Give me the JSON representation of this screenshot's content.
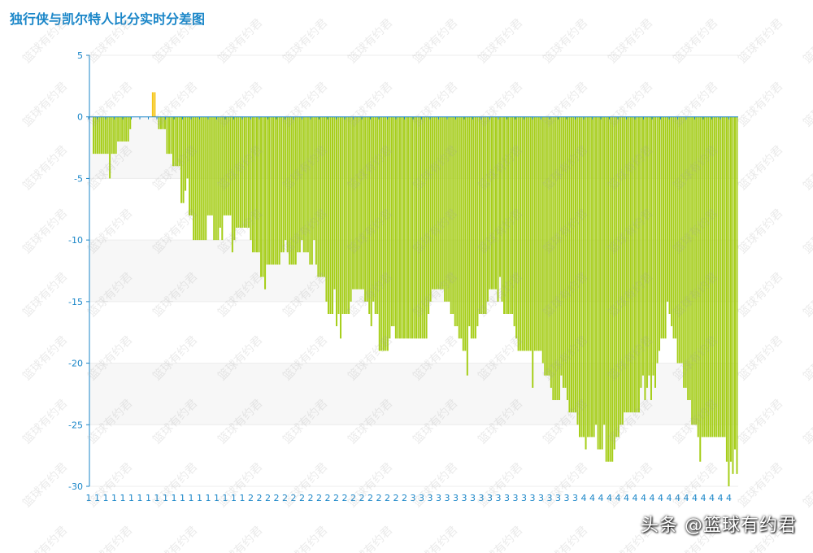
{
  "title": "独行侠与凯尔特人比分实时分差图",
  "watermark_text": "篮球有约君",
  "credit": "头条 @篮球有约君",
  "colors": {
    "positive": "#f5c518",
    "negative": "#a6ce19",
    "axis": "#1a86c8",
    "band": "#f7f7f7"
  },
  "chart_data": {
    "type": "bar",
    "title": "独行侠与凯尔特人比分实时分差图",
    "ylim": [
      -30,
      5
    ],
    "yticks": [
      5,
      0,
      -5,
      -10,
      -15,
      -20,
      -25,
      -30
    ],
    "x_tick_labels": [
      "1",
      "1",
      "1",
      "1",
      "1",
      "1",
      "1",
      "1",
      "1",
      "1",
      "1",
      "1",
      "1",
      "1",
      "1",
      "1",
      "1",
      "1",
      "1",
      "2",
      "2",
      "2",
      "2",
      "2",
      "2",
      "2",
      "2",
      "2",
      "2",
      "2",
      "2",
      "2",
      "2",
      "2",
      "2",
      "2",
      "2",
      "2",
      "3",
      "3",
      "3",
      "3",
      "3",
      "3",
      "3",
      "3",
      "3",
      "3",
      "3",
      "3",
      "3",
      "3",
      "3",
      "3",
      "3",
      "3",
      "3",
      "3",
      "4",
      "4",
      "4",
      "4",
      "4",
      "4",
      "4",
      "4",
      "4",
      "4",
      "4",
      "4",
      "4",
      "4",
      "4",
      "4",
      "4",
      "4"
    ],
    "values": [
      -3,
      -3,
      -3,
      -3,
      -3,
      -3,
      -3,
      -3,
      -5,
      -3,
      -3,
      -3,
      -2,
      -2,
      -2,
      -2,
      -2,
      -2,
      -1,
      0,
      0,
      0,
      0,
      0,
      0,
      0,
      0,
      0,
      0,
      2,
      2,
      0,
      -1,
      -1,
      -1,
      -1,
      -3,
      -3,
      -3,
      -4,
      -4,
      -4,
      -4,
      -7,
      -7,
      -6,
      -5,
      -8,
      -8,
      -10,
      -10,
      -10,
      -10,
      -10,
      -10,
      -10,
      -8,
      -8,
      -8,
      -10,
      -10,
      -10,
      -9,
      -10,
      -8,
      -8,
      -8,
      -8,
      -11,
      -10,
      -9,
      -9,
      -9,
      -9,
      -9,
      -9,
      -9,
      -10,
      -11,
      -11,
      -11,
      -11,
      -13,
      -13,
      -14,
      -12,
      -12,
      -12,
      -12,
      -12,
      -12,
      -12,
      -11,
      -11,
      -10,
      -11,
      -12,
      -12,
      -12,
      -12,
      -11,
      -11,
      -10,
      -11,
      -11,
      -11,
      -12,
      -12,
      -10,
      -12,
      -13,
      -13,
      -13,
      -13,
      -15,
      -16,
      -16,
      -16,
      -14,
      -17,
      -16,
      -18,
      -16,
      -16,
      -16,
      -16,
      -15,
      -14,
      -14,
      -14,
      -14,
      -14,
      -14,
      -15,
      -15,
      -16,
      -17,
      -15,
      -16,
      -16,
      -19,
      -19,
      -19,
      -19,
      -19,
      -18,
      -17,
      -17,
      -18,
      -18,
      -18,
      -18,
      -18,
      -18,
      -18,
      -18,
      -18,
      -18,
      -18,
      -18,
      -18,
      -18,
      -18,
      -18,
      -16,
      -15,
      -14,
      -14,
      -14,
      -14,
      -14,
      -14,
      -15,
      -15,
      -15,
      -16,
      -16,
      -17,
      -17,
      -18,
      -18,
      -19,
      -19,
      -21,
      -17,
      -18,
      -18,
      -18,
      -17,
      -16,
      -16,
      -16,
      -16,
      -15,
      -14,
      -14,
      -14,
      -14,
      -15,
      -13,
      -15,
      -16,
      -16,
      -16,
      -16,
      -16,
      -17,
      -18,
      -19,
      -19,
      -19,
      -19,
      -19,
      -19,
      -19,
      -22,
      -19,
      -19,
      -19,
      -19,
      -20,
      -21,
      -21,
      -21,
      -22,
      -23,
      -23,
      -23,
      -23,
      -21,
      -22,
      -22,
      -23,
      -24,
      -24,
      -24,
      -24,
      -25,
      -26,
      -26,
      -26,
      -27,
      -26,
      -26,
      -26,
      -26,
      -25,
      -27,
      -27,
      -27,
      -25,
      -28,
      -28,
      -28,
      -28,
      -27,
      -26,
      -26,
      -25,
      -25,
      -24,
      -24,
      -24,
      -24,
      -24,
      -24,
      -24,
      -24,
      -22,
      -21,
      -23,
      -22,
      -21,
      -23,
      -21,
      -22,
      -20,
      -19,
      -18,
      -18,
      -18,
      -15,
      -16,
      -17,
      -18,
      -18,
      -20,
      -20,
      -20,
      -22,
      -22,
      -23,
      -23,
      -25,
      -25,
      -25,
      -26,
      -28,
      -26,
      -26,
      -26,
      -26,
      -26,
      -26,
      -26,
      -26,
      -26,
      -26,
      -26,
      -26,
      -28,
      -30,
      -28,
      -29,
      -27,
      -29
    ]
  }
}
